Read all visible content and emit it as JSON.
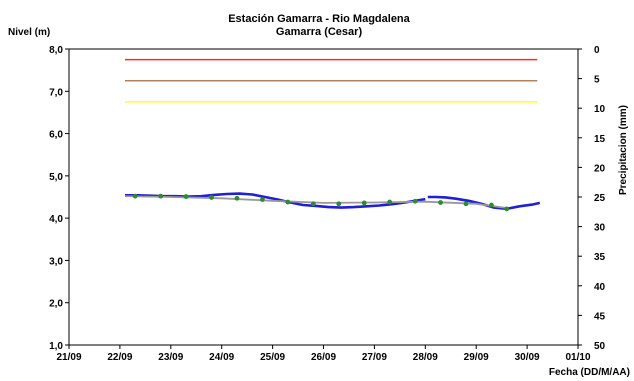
{
  "chart_data": {
    "type": "line",
    "title": "Estación Gamarra - Rio  Magdalena",
    "subtitle": "Gamarra (Cesar)",
    "ylabel": "Nivel (m)",
    "y2label": "Precipitacion (mm)",
    "xlabel": "Fecha (DD/M/AA)",
    "x_ticks": [
      "21/09",
      "22/09",
      "23/09",
      "24/09",
      "25/09",
      "26/09",
      "27/09",
      "28/09",
      "29/09",
      "30/09",
      "01/10"
    ],
    "y_ticks": [
      "1,0",
      "2,0",
      "3,0",
      "4,0",
      "5,0",
      "6,0",
      "7,0",
      "8,0"
    ],
    "y2_ticks": [
      "0",
      "5",
      "10",
      "15",
      "20",
      "25",
      "30",
      "35",
      "40",
      "45",
      "50"
    ],
    "xlim": [
      0,
      10
    ],
    "ylim": [
      1.0,
      8.0
    ],
    "y2lim": [
      0,
      50
    ],
    "grid": false,
    "thresholds": [
      {
        "value": 7.75,
        "color": "#ff2a2a"
      },
      {
        "value": 7.25,
        "color": "#b08060"
      },
      {
        "value": 6.75,
        "color": "#ffff33"
      }
    ],
    "series": [
      {
        "style": "observed",
        "color": "#1f1fd6",
        "points": [
          [
            1.1,
            4.54
          ],
          [
            1.35,
            4.54
          ],
          [
            1.6,
            4.53
          ],
          [
            1.85,
            4.52
          ],
          [
            2.1,
            4.52
          ],
          [
            2.35,
            4.51
          ],
          [
            2.6,
            4.52
          ],
          [
            2.85,
            4.55
          ],
          [
            3.1,
            4.57
          ],
          [
            3.35,
            4.58
          ],
          [
            3.6,
            4.56
          ],
          [
            3.85,
            4.5
          ],
          [
            4.1,
            4.44
          ],
          [
            4.35,
            4.37
          ],
          [
            4.6,
            4.31
          ],
          [
            4.85,
            4.29
          ],
          [
            5.1,
            4.26
          ],
          [
            5.35,
            4.25
          ],
          [
            5.6,
            4.26
          ],
          [
            5.85,
            4.28
          ],
          [
            6.1,
            4.3
          ],
          [
            6.35,
            4.33
          ],
          [
            6.6,
            4.37
          ],
          [
            6.85,
            4.42
          ],
          [
            7.0,
            4.45
          ],
          null,
          [
            7.05,
            4.5
          ],
          [
            7.2,
            4.5
          ],
          [
            7.4,
            4.49
          ],
          [
            7.6,
            4.46
          ],
          [
            7.85,
            4.41
          ],
          [
            8.1,
            4.34
          ],
          [
            8.35,
            4.25
          ],
          [
            8.6,
            4.22
          ],
          [
            8.85,
            4.28
          ],
          [
            9.1,
            4.32
          ],
          [
            9.25,
            4.36
          ]
        ]
      },
      {
        "style": "trend",
        "color": "#999999",
        "points": [
          [
            1.1,
            4.52
          ],
          [
            2.0,
            4.5
          ],
          [
            3.0,
            4.47
          ],
          [
            4.0,
            4.41
          ],
          [
            5.0,
            4.36
          ],
          [
            6.0,
            4.37
          ],
          [
            7.0,
            4.39
          ],
          [
            8.0,
            4.34
          ],
          [
            8.6,
            4.24
          ]
        ]
      },
      {
        "style": "markers",
        "color": "#2e8b2e",
        "points": [
          [
            1.3,
            4.52
          ],
          [
            1.8,
            4.52
          ],
          [
            2.3,
            4.51
          ],
          [
            2.8,
            4.49
          ],
          [
            3.3,
            4.47
          ],
          [
            3.8,
            4.44
          ],
          [
            4.3,
            4.38
          ],
          [
            4.8,
            4.34
          ],
          [
            5.3,
            4.34
          ],
          [
            5.8,
            4.36
          ],
          [
            6.3,
            4.38
          ],
          [
            6.8,
            4.4
          ],
          [
            7.3,
            4.37
          ],
          [
            7.8,
            4.34
          ],
          [
            8.3,
            4.31
          ],
          [
            8.6,
            4.22
          ]
        ]
      }
    ]
  }
}
